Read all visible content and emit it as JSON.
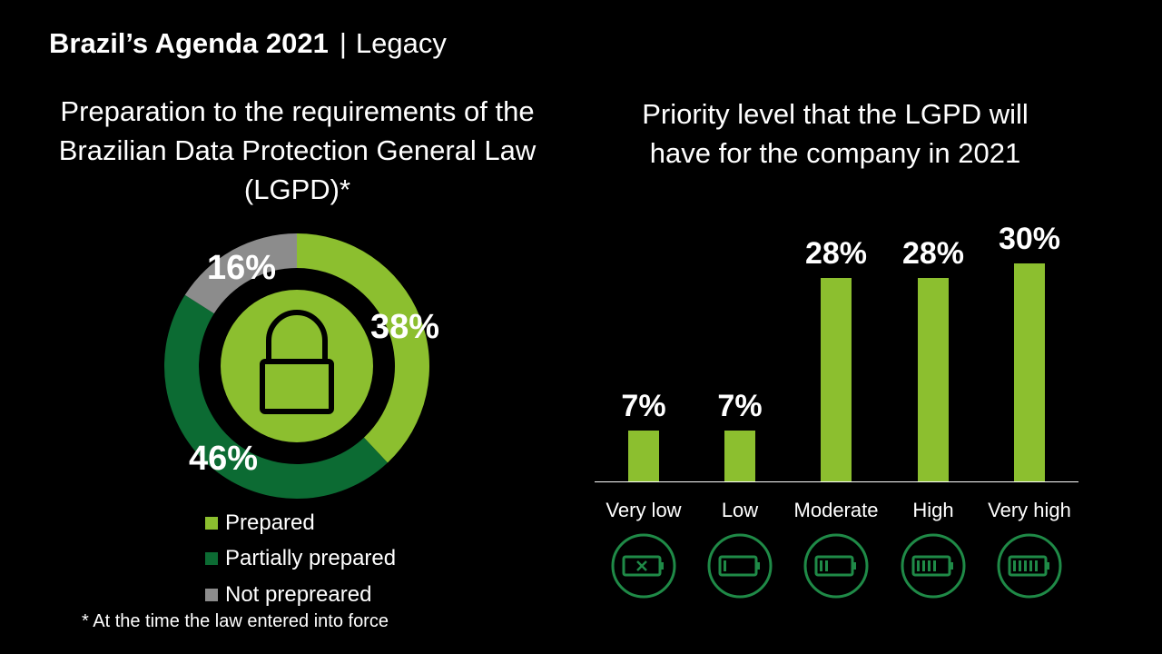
{
  "header": {
    "title": "Brazil’s Agenda 2021",
    "subtitle": "Legacy"
  },
  "colors": {
    "prepared": "#8cbf2f",
    "partially_prepared": "#0c6b33",
    "not_prepared": "#8c8c8c",
    "bar": "#8cbf2f",
    "icon": "#1f8a47"
  },
  "chart_data": [
    {
      "type": "pie",
      "variant": "donut",
      "title": "Preparation to the requirements of the Brazilian Data Protection General Law (LGPD)*",
      "categories": [
        "Prepared",
        "Partially prepared",
        "Not prepreared"
      ],
      "values": [
        38,
        46,
        16
      ],
      "labels": [
        "38%",
        "46%",
        "16%"
      ],
      "center_icon": "lock-icon",
      "legend": "bottom"
    },
    {
      "type": "bar",
      "title": "Priority level that the LGPD will have for the company in 2021",
      "categories": [
        "Very low",
        "Low",
        "Moderate",
        "High",
        "Very high"
      ],
      "values": [
        7,
        7,
        28,
        28,
        30
      ],
      "labels": [
        "7%",
        "7%",
        "28%",
        "28%",
        "30%"
      ],
      "category_icons": [
        "battery-empty-icon",
        "battery-low-icon",
        "battery-medium-icon",
        "battery-high-icon",
        "battery-full-icon"
      ],
      "xlabel": "",
      "ylabel": ""
    }
  ],
  "footnote": "* At the time the law entered into force"
}
